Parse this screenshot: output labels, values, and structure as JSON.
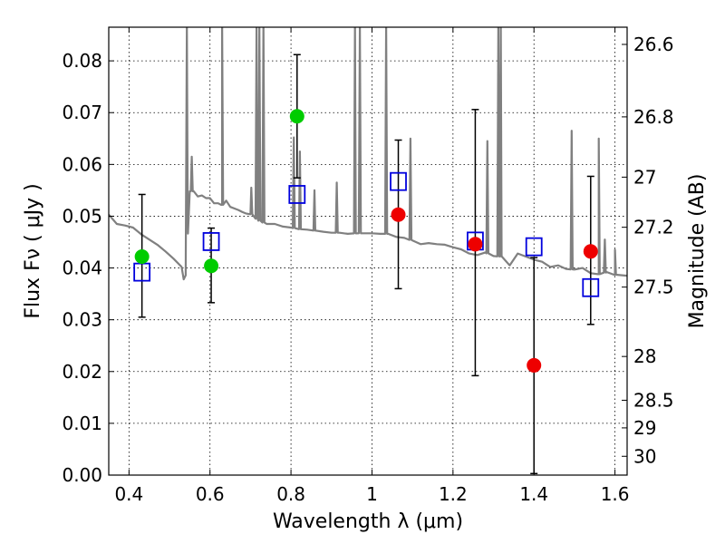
{
  "chart_data": {
    "type": "scatter",
    "xlabel": "Wavelength  λ (μm)",
    "ylabel": "Flux  Fν  ( μJy )",
    "y2label": "Magnitude (AB)",
    "xlim": [
      0.35,
      1.63
    ],
    "ylim": [
      0.0,
      0.0865
    ],
    "grid": true,
    "x_ticks": [
      0.4,
      0.6,
      0.8,
      1.0,
      1.2,
      1.4,
      1.6
    ],
    "x_tick_labels": [
      "0.4",
      "0.6",
      "0.8",
      "1",
      "1.2",
      "1.4",
      "1.6"
    ],
    "y_ticks": [
      0.0,
      0.01,
      0.02,
      0.03,
      0.04,
      0.05,
      0.06,
      0.07,
      0.08
    ],
    "y_tick_labels": [
      "0.00",
      "0.01",
      "0.02",
      "0.03",
      "0.04",
      "0.05",
      "0.06",
      "0.07",
      "0.08"
    ],
    "y2_ticks": [
      {
        "label": "26.6",
        "mag": 26.6
      },
      {
        "label": "26.8",
        "mag": 26.8
      },
      {
        "label": "27",
        "mag": 27.0
      },
      {
        "label": "27.2",
        "mag": 27.2
      },
      {
        "label": "27.5",
        "mag": 27.5
      },
      {
        "label": "28",
        "mag": 28.0
      },
      {
        "label": "28.5",
        "mag": 28.5
      },
      {
        "label": "29",
        "mag": 29.0
      },
      {
        "label": "30",
        "mag": 30.0
      }
    ],
    "series": [
      {
        "kind": "model-spectrum",
        "color": "#808080",
        "x": [
          0.35,
          0.37,
          0.39,
          0.41,
          0.43,
          0.45,
          0.47,
          0.49,
          0.51,
          0.53,
          0.535,
          0.54,
          0.545,
          0.55,
          0.56,
          0.57,
          0.58,
          0.59,
          0.6,
          0.61,
          0.62,
          0.63,
          0.64,
          0.65,
          0.66,
          0.67,
          0.68,
          0.69,
          0.7,
          0.72,
          0.74,
          0.76,
          0.78,
          0.8,
          0.82,
          0.84,
          0.86,
          0.88,
          0.9,
          0.92,
          0.94,
          0.96,
          0.98,
          1.0,
          1.02,
          1.04,
          1.06,
          1.08,
          1.1,
          1.12,
          1.14,
          1.16,
          1.18,
          1.2,
          1.22,
          1.24,
          1.26,
          1.28,
          1.3,
          1.32,
          1.34,
          1.36,
          1.38,
          1.4,
          1.42,
          1.44,
          1.46,
          1.48,
          1.5,
          1.52,
          1.54,
          1.56,
          1.58,
          1.6,
          1.63
        ],
        "y": [
          0.0503,
          0.0485,
          0.0482,
          0.0478,
          0.0465,
          0.0455,
          0.0445,
          0.0432,
          0.0418,
          0.0402,
          0.0378,
          0.0386,
          0.052,
          0.0548,
          0.0548,
          0.0538,
          0.054,
          0.0535,
          0.0535,
          0.0525,
          0.0525,
          0.0522,
          0.053,
          0.0518,
          0.0515,
          0.0512,
          0.0508,
          0.0505,
          0.0505,
          0.0492,
          0.0485,
          0.0485,
          0.048,
          0.0478,
          0.0475,
          0.0474,
          0.0472,
          0.047,
          0.0468,
          0.0468,
          0.0466,
          0.0467,
          0.0467,
          0.0467,
          0.0466,
          0.0466,
          0.046,
          0.0458,
          0.0453,
          0.0446,
          0.0448,
          0.0446,
          0.0445,
          0.044,
          0.0436,
          0.0428,
          0.0425,
          0.043,
          0.0423,
          0.0422,
          0.0405,
          0.0428,
          0.0422,
          0.0416,
          0.0412,
          0.0402,
          0.0405,
          0.0398,
          0.0397,
          0.04,
          0.039,
          0.0388,
          0.0392,
          0.0387,
          0.0385
        ]
      },
      {
        "kind": "emission-lines",
        "color": "#808080",
        "lines": [
          {
            "x": 0.543,
            "peak": 0.087
          },
          {
            "x": 0.555,
            "peak": 0.0615
          },
          {
            "x": 0.63,
            "peak": 0.087
          },
          {
            "x": 0.702,
            "peak": 0.0555
          },
          {
            "x": 0.715,
            "peak": 0.087
          },
          {
            "x": 0.722,
            "peak": 0.087
          },
          {
            "x": 0.732,
            "peak": 0.087
          },
          {
            "x": 0.807,
            "peak": 0.0652
          },
          {
            "x": 0.822,
            "peak": 0.0625
          },
          {
            "x": 0.858,
            "peak": 0.055
          },
          {
            "x": 0.913,
            "peak": 0.0565
          },
          {
            "x": 0.958,
            "peak": 0.087
          },
          {
            "x": 0.97,
            "peak": 0.087
          },
          {
            "x": 1.035,
            "peak": 0.087
          },
          {
            "x": 1.095,
            "peak": 0.065
          },
          {
            "x": 1.285,
            "peak": 0.0645
          },
          {
            "x": 1.312,
            "peak": 0.087
          },
          {
            "x": 1.318,
            "peak": 0.087
          },
          {
            "x": 1.493,
            "peak": 0.0665
          },
          {
            "x": 1.56,
            "peak": 0.065
          },
          {
            "x": 1.575,
            "peak": 0.0455
          },
          {
            "x": 1.6,
            "peak": 0.0435
          }
        ]
      },
      {
        "kind": "photometry-optical",
        "color": "#00cc00",
        "x": [
          0.432,
          0.603,
          0.815
        ],
        "y": [
          0.0422,
          0.0404,
          0.0693
        ],
        "yerr_lo": [
          0.0305,
          0.0333,
          0.0574
        ],
        "yerr_hi": [
          0.0542,
          0.0477,
          0.0812
        ]
      },
      {
        "kind": "photometry-nir",
        "color": "#ee0000",
        "x": [
          1.065,
          1.255,
          1.4,
          1.54
        ],
        "y": [
          0.0503,
          0.0446,
          0.0212,
          0.0432
        ],
        "yerr_lo": [
          0.036,
          0.0192,
          0.0003,
          0.0291
        ],
        "yerr_hi": [
          0.0647,
          0.0706,
          0.042,
          0.0577
        ]
      },
      {
        "kind": "model-band-flux",
        "color": "#0000dd",
        "x": [
          0.432,
          0.603,
          0.815,
          1.065,
          1.255,
          1.4,
          1.54
        ],
        "y": [
          0.0392,
          0.0451,
          0.0542,
          0.0567,
          0.0452,
          0.0441,
          0.0362
        ]
      }
    ]
  }
}
